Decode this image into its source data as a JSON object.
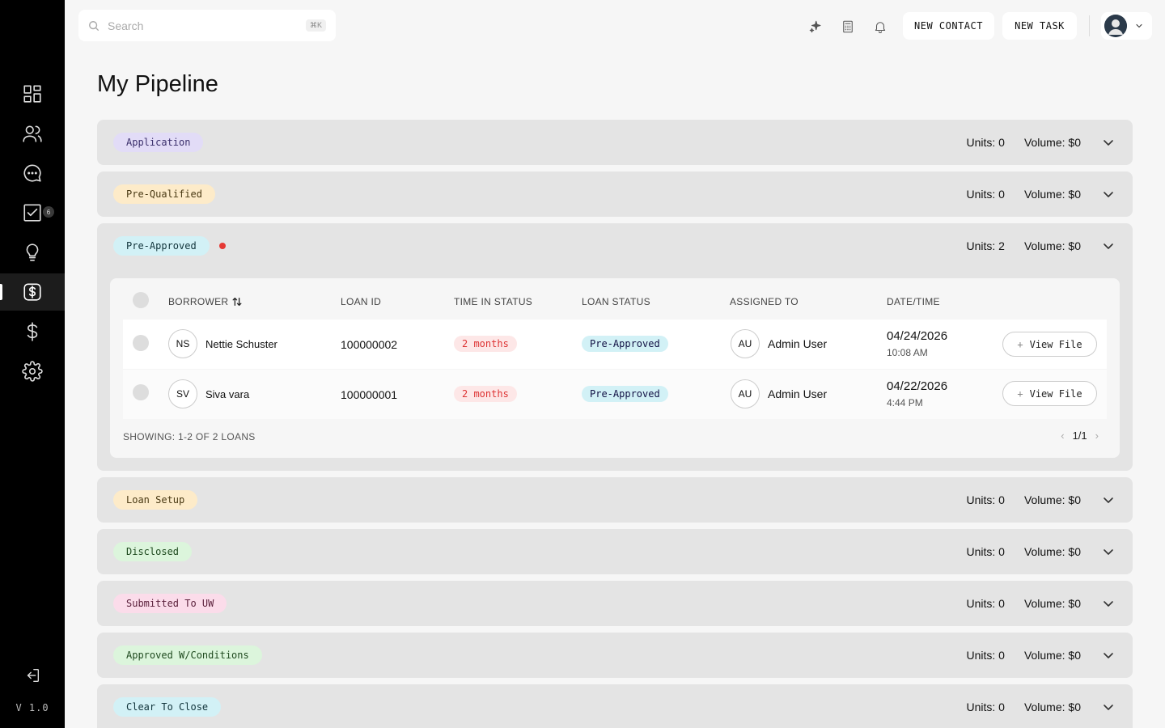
{
  "sidebar": {
    "items": [
      {
        "id": "dashboard",
        "icon": "grid-icon",
        "badge": ""
      },
      {
        "id": "contacts",
        "icon": "users-icon",
        "badge": ""
      },
      {
        "id": "messages",
        "icon": "chat-icon",
        "badge": ""
      },
      {
        "id": "tasks",
        "icon": "checkbox-icon",
        "badge": "6"
      },
      {
        "id": "ideas",
        "icon": "lightbulb-icon",
        "badge": ""
      },
      {
        "id": "pipeline",
        "icon": "dollar-square-icon",
        "badge": "",
        "active": true
      },
      {
        "id": "finance",
        "icon": "dollar-icon",
        "badge": ""
      },
      {
        "id": "settings",
        "icon": "gear-icon",
        "badge": ""
      }
    ],
    "logout_icon": "logout-icon",
    "version": "V 1.0"
  },
  "topbar": {
    "search_placeholder": "Search",
    "search_shortcut": "⌘K",
    "new_contact_label": "NEW CONTACT",
    "new_task_label": "NEW TASK"
  },
  "page": {
    "title": "My Pipeline"
  },
  "stages": [
    {
      "label": "Application",
      "units": "Units: 0",
      "volume": "Volume: $0",
      "color": "#e2dcf7",
      "text_color": "#3a2f6b"
    },
    {
      "label": "Pre-Qualified",
      "units": "Units: 0",
      "volume": "Volume: $0",
      "color": "#fdebc9",
      "text_color": "#4a3a14"
    },
    {
      "label": "Pre-Approved",
      "units": "Units: 2",
      "volume": "Volume: $0",
      "color": "#d2f1f6",
      "text_color": "#11343b",
      "expanded": true
    },
    {
      "label": "Loan Setup",
      "units": "Units: 0",
      "volume": "Volume: $0",
      "color": "#fdebc9",
      "text_color": "#4a3a14"
    },
    {
      "label": "Disclosed",
      "units": "Units: 0",
      "volume": "Volume: $0",
      "color": "#dcf5dc",
      "text_color": "#1f4a1f"
    },
    {
      "label": "Submitted To UW",
      "units": "Units: 0",
      "volume": "Volume: $0",
      "color": "#fbdcea",
      "text_color": "#5a1f3a"
    },
    {
      "label": "Approved W/Conditions",
      "units": "Units: 0",
      "volume": "Volume: $0",
      "color": "#dcf5dc",
      "text_color": "#1f4a1f"
    },
    {
      "label": "Clear To Close",
      "units": "Units: 0",
      "volume": "Volume: $0",
      "color": "#d2f1f6",
      "text_color": "#11343b"
    }
  ],
  "table": {
    "headers": {
      "borrower": "BORROWER",
      "loan_id": "LOAN ID",
      "time_in_status": "TIME IN STATUS",
      "loan_status": "LOAN STATUS",
      "assigned_to": "ASSIGNED TO",
      "date_time": "DATE/TIME"
    },
    "rows": [
      {
        "initials": "NS",
        "name": "Nettie Schuster",
        "loan_id": "100000002",
        "time": "2 months",
        "status": "Pre-Approved",
        "assignee_initials": "AU",
        "assignee": "Admin User",
        "date": "04/24/2026",
        "time_of_day": "10:08 AM",
        "action": "View File"
      },
      {
        "initials": "SV",
        "name": "Siva vara",
        "loan_id": "100000001",
        "time": "2 months",
        "status": "Pre-Approved",
        "assignee_initials": "AU",
        "assignee": "Admin User",
        "date": "04/22/2026",
        "time_of_day": "4:44 PM",
        "action": "View File"
      }
    ],
    "footer": "SHOWING: 1-2 OF 2 LOANS",
    "page": "1/1"
  }
}
